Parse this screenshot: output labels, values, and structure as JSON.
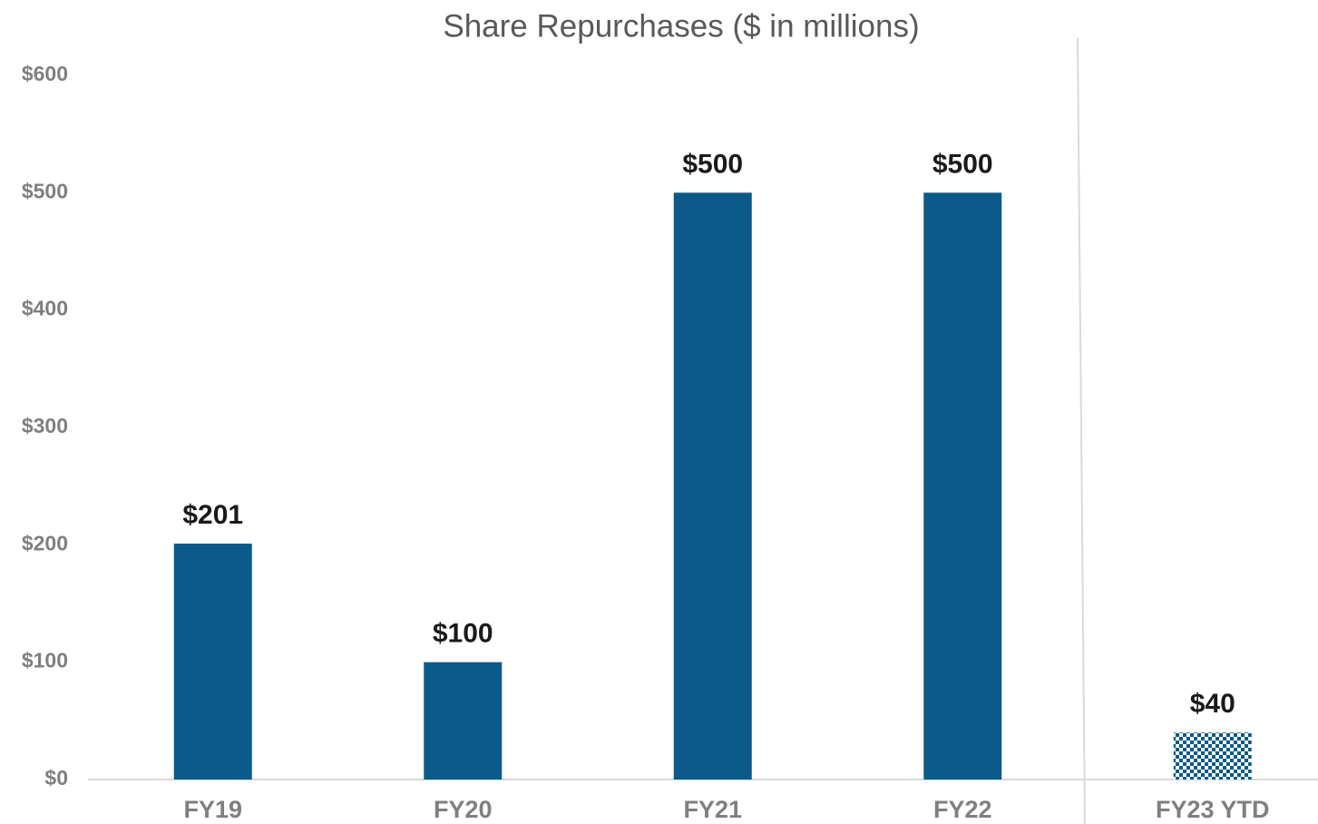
{
  "chart_data": {
    "type": "bar",
    "title": "Share Repurchases ($ in millions)",
    "categories": [
      "FY19",
      "FY20",
      "FY21",
      "FY22",
      "FY23 YTD"
    ],
    "values": [
      201,
      100,
      500,
      500,
      40
    ],
    "value_labels": [
      "$201",
      "$100",
      "$500",
      "$500",
      "$40"
    ],
    "color": "#0b5a8a",
    "bar_styles": [
      "solid",
      "solid",
      "solid",
      "solid",
      "checkered"
    ],
    "ylim": [
      0,
      600
    ],
    "yticks": [
      {
        "value": 0,
        "label": "$0"
      },
      {
        "value": 100,
        "label": "$100"
      },
      {
        "value": 200,
        "label": "$200"
      },
      {
        "value": 300,
        "label": "$300"
      },
      {
        "value": 400,
        "label": "$400"
      },
      {
        "value": 500,
        "label": "$500"
      },
      {
        "value": 600,
        "label": "$600"
      }
    ],
    "grid": false
  }
}
